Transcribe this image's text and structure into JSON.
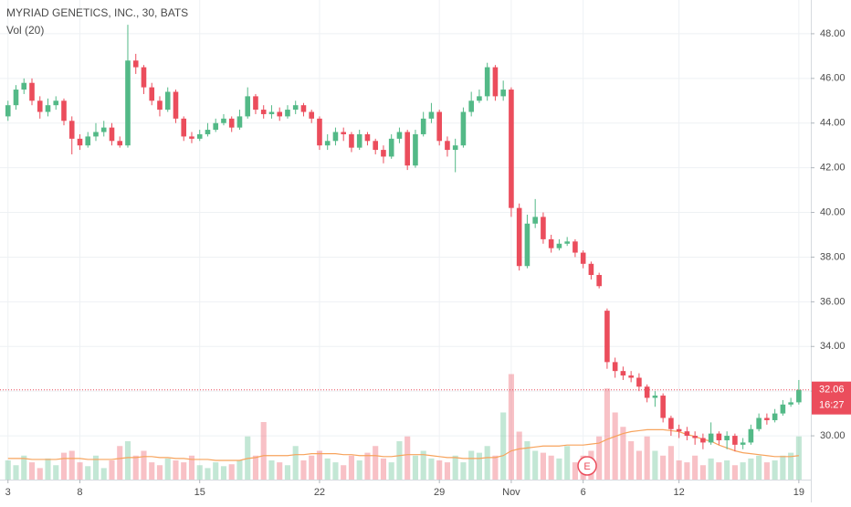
{
  "chart_data": {
    "type": "candlestick",
    "title": "MYRIAD GENETICS, INC., 30, BATS",
    "indicator_label": "Vol (20)",
    "up_color": "#53b987",
    "down_color": "#eb4d5c",
    "ma_color": "#f7a35c",
    "last_price": 32.06,
    "countdown": "16:27",
    "earnings_marker": {
      "label": "E",
      "x": 72.5
    },
    "xlim": [
      -1,
      100.5
    ],
    "xticks": [
      {
        "value": 0,
        "label": "3"
      },
      {
        "value": 9,
        "label": "8"
      },
      {
        "value": 24,
        "label": "15"
      },
      {
        "value": 39,
        "label": "22"
      },
      {
        "value": 54,
        "label": "29"
      },
      {
        "value": 63,
        "label": "Nov"
      },
      {
        "value": 72,
        "label": "6"
      },
      {
        "value": 84,
        "label": "12"
      },
      {
        "value": 99,
        "label": "19"
      }
    ],
    "ylim": [
      28.04,
      49.51
    ],
    "yticks": [
      {
        "value": 30,
        "label": "30.00"
      },
      {
        "value": 32,
        "label": "32.00"
      },
      {
        "value": 34,
        "label": "34.00"
      },
      {
        "value": 36,
        "label": "36.00"
      },
      {
        "value": 38,
        "label": "38.00"
      },
      {
        "value": 40,
        "label": "40.00"
      },
      {
        "value": 42,
        "label": "42.00"
      },
      {
        "value": 44,
        "label": "44.00"
      },
      {
        "value": 46,
        "label": "46.00"
      },
      {
        "value": 48,
        "label": "48.00"
      }
    ],
    "grid": true,
    "volume_ylim": [
      0,
      500
    ],
    "open": [
      44.3,
      44.8,
      45.5,
      45.8,
      45.0,
      44.5,
      44.8,
      45.0,
      44.1,
      43.3,
      43.0,
      43.4,
      43.6,
      43.8,
      43.2,
      43.0,
      46.8,
      46.5,
      45.6,
      45.0,
      44.6,
      45.4,
      44.2,
      43.4,
      43.3,
      43.5,
      43.7,
      44.0,
      44.2,
      43.8,
      44.3,
      45.2,
      44.6,
      44.4,
      44.5,
      44.3,
      44.6,
      44.8,
      44.5,
      44.2,
      43.0,
      43.2,
      43.6,
      43.5,
      42.9,
      43.5,
      43.2,
      42.8,
      42.5,
      43.3,
      43.6,
      42.1,
      43.5,
      44.2,
      44.5,
      43.2,
      42.8,
      43.0,
      44.5,
      45.0,
      45.2,
      46.5,
      45.2,
      45.5,
      40.2,
      37.6,
      39.5,
      39.8,
      38.8,
      38.4,
      38.6,
      38.7,
      38.2,
      37.7,
      37.2,
      35.6,
      33.3,
      32.9,
      32.7,
      32.6,
      32.2,
      31.7,
      31.8,
      30.8,
      30.3,
      30.2,
      30.0,
      29.9,
      29.7,
      30.1,
      29.8,
      30.0,
      29.6,
      29.7,
      30.3,
      30.8,
      30.7,
      31.0,
      31.4,
      31.5
    ],
    "high": [
      45.0,
      45.7,
      46.0,
      46.0,
      45.2,
      45.1,
      45.2,
      45.1,
      44.3,
      43.5,
      43.6,
      44.0,
      44.1,
      44.0,
      43.4,
      48.4,
      47.1,
      46.6,
      45.8,
      45.2,
      45.6,
      45.5,
      44.3,
      43.6,
      43.7,
      44.0,
      44.2,
      44.4,
      44.3,
      44.6,
      45.6,
      45.3,
      44.8,
      44.8,
      44.7,
      44.8,
      45.0,
      44.9,
      44.6,
      44.3,
      43.5,
      43.8,
      43.8,
      43.6,
      43.7,
      43.6,
      43.3,
      43.0,
      43.5,
      43.8,
      43.7,
      43.7,
      44.5,
      44.9,
      44.6,
      43.4,
      43.3,
      44.7,
      45.4,
      45.5,
      46.7,
      46.6,
      45.9,
      45.6,
      40.4,
      39.9,
      40.6,
      40.0,
      39.0,
      38.8,
      38.9,
      38.8,
      38.3,
      37.8,
      37.3,
      35.7,
      33.5,
      33.1,
      32.9,
      32.8,
      32.3,
      32.0,
      31.9,
      30.9,
      30.5,
      30.4,
      30.2,
      30.1,
      30.6,
      30.2,
      30.2,
      30.1,
      29.9,
      30.5,
      31.0,
      31.0,
      31.2,
      31.6,
      31.7,
      32.5
    ],
    "low": [
      44.1,
      44.6,
      45.3,
      44.8,
      44.2,
      44.3,
      44.6,
      43.9,
      42.6,
      42.8,
      42.9,
      43.2,
      43.4,
      43.0,
      42.9,
      42.9,
      46.2,
      45.3,
      44.8,
      44.3,
      44.5,
      44.0,
      43.2,
      43.1,
      43.2,
      43.4,
      43.6,
      43.9,
      43.6,
      43.7,
      44.2,
      44.4,
      44.2,
      44.2,
      44.1,
      44.2,
      44.4,
      44.3,
      44.0,
      42.8,
      42.8,
      43.0,
      43.2,
      42.7,
      42.8,
      43.0,
      42.6,
      42.2,
      42.4,
      43.1,
      41.9,
      42.0,
      43.4,
      44.0,
      43.0,
      42.5,
      41.8,
      42.9,
      44.3,
      44.9,
      45.0,
      45.0,
      45.0,
      39.8,
      37.4,
      37.5,
      39.3,
      38.6,
      38.2,
      38.3,
      38.5,
      38.0,
      37.5,
      37.0,
      36.6,
      33.0,
      32.6,
      32.5,
      32.4,
      32.0,
      31.5,
      31.3,
      30.6,
      30.0,
      29.9,
      29.8,
      29.6,
      29.4,
      29.6,
      29.6,
      29.4,
      29.3,
      29.4,
      29.6,
      30.2,
      30.5,
      30.6,
      30.9,
      31.3,
      31.4
    ],
    "close": [
      44.8,
      45.5,
      45.8,
      45.0,
      44.5,
      44.8,
      45.0,
      44.1,
      43.3,
      43.0,
      43.4,
      43.6,
      43.8,
      43.2,
      43.0,
      46.8,
      46.5,
      45.6,
      45.0,
      44.6,
      45.4,
      44.2,
      43.4,
      43.3,
      43.5,
      43.7,
      44.0,
      44.2,
      43.8,
      44.3,
      45.2,
      44.6,
      44.4,
      44.5,
      44.3,
      44.6,
      44.8,
      44.5,
      44.2,
      43.0,
      43.2,
      43.6,
      43.5,
      42.9,
      43.5,
      43.2,
      42.8,
      42.5,
      43.3,
      43.6,
      42.1,
      43.5,
      44.2,
      44.5,
      43.2,
      42.8,
      43.0,
      44.5,
      45.0,
      45.2,
      46.5,
      45.2,
      45.5,
      40.2,
      37.6,
      39.5,
      39.8,
      38.8,
      38.4,
      38.6,
      38.7,
      38.2,
      37.7,
      37.2,
      36.7,
      33.3,
      32.9,
      32.7,
      32.6,
      32.2,
      31.7,
      31.8,
      30.8,
      30.3,
      30.2,
      30.0,
      29.9,
      29.7,
      30.1,
      29.8,
      30.0,
      29.6,
      29.7,
      30.3,
      30.8,
      30.7,
      31.0,
      31.4,
      31.5,
      32.06
    ],
    "volume": [
      20,
      15,
      25,
      18,
      12,
      22,
      15,
      28,
      30,
      18,
      14,
      25,
      12,
      20,
      35,
      40,
      25,
      30,
      18,
      15,
      22,
      20,
      18,
      25,
      15,
      12,
      18,
      14,
      16,
      20,
      45,
      25,
      60,
      20,
      18,
      15,
      35,
      20,
      25,
      30,
      22,
      18,
      15,
      25,
      20,
      28,
      35,
      22,
      18,
      40,
      45,
      25,
      30,
      22,
      20,
      18,
      25,
      18,
      30,
      28,
      35,
      25,
      70,
      110,
      50,
      40,
      30,
      28,
      25,
      22,
      35,
      18,
      25,
      30,
      45,
      95,
      70,
      55,
      40,
      30,
      45,
      30,
      25,
      35,
      20,
      18,
      25,
      15,
      22,
      18,
      20,
      15,
      18,
      22,
      25,
      18,
      20,
      25,
      28,
      45
    ],
    "volume_ma": [
      22,
      22,
      22,
      21,
      21,
      21,
      21,
      22,
      22,
      22,
      21,
      21,
      21,
      21,
      22,
      23,
      23,
      24,
      24,
      23,
      23,
      22,
      22,
      21,
      21,
      21,
      20,
      20,
      20,
      20,
      22,
      23,
      25,
      25,
      25,
      25,
      26,
      26,
      27,
      27,
      27,
      27,
      26,
      26,
      25,
      25,
      25,
      24,
      24,
      25,
      26,
      26,
      26,
      25,
      24,
      23,
      23,
      22,
      22,
      22,
      23,
      23,
      25,
      30,
      32,
      33,
      34,
      35,
      35,
      35,
      36,
      36,
      36,
      37,
      38,
      42,
      45,
      48,
      50,
      51,
      52,
      52,
      52,
      51,
      50,
      47,
      45,
      42,
      40,
      36,
      33,
      30,
      28,
      27,
      26,
      25,
      24,
      24,
      24,
      25
    ]
  }
}
